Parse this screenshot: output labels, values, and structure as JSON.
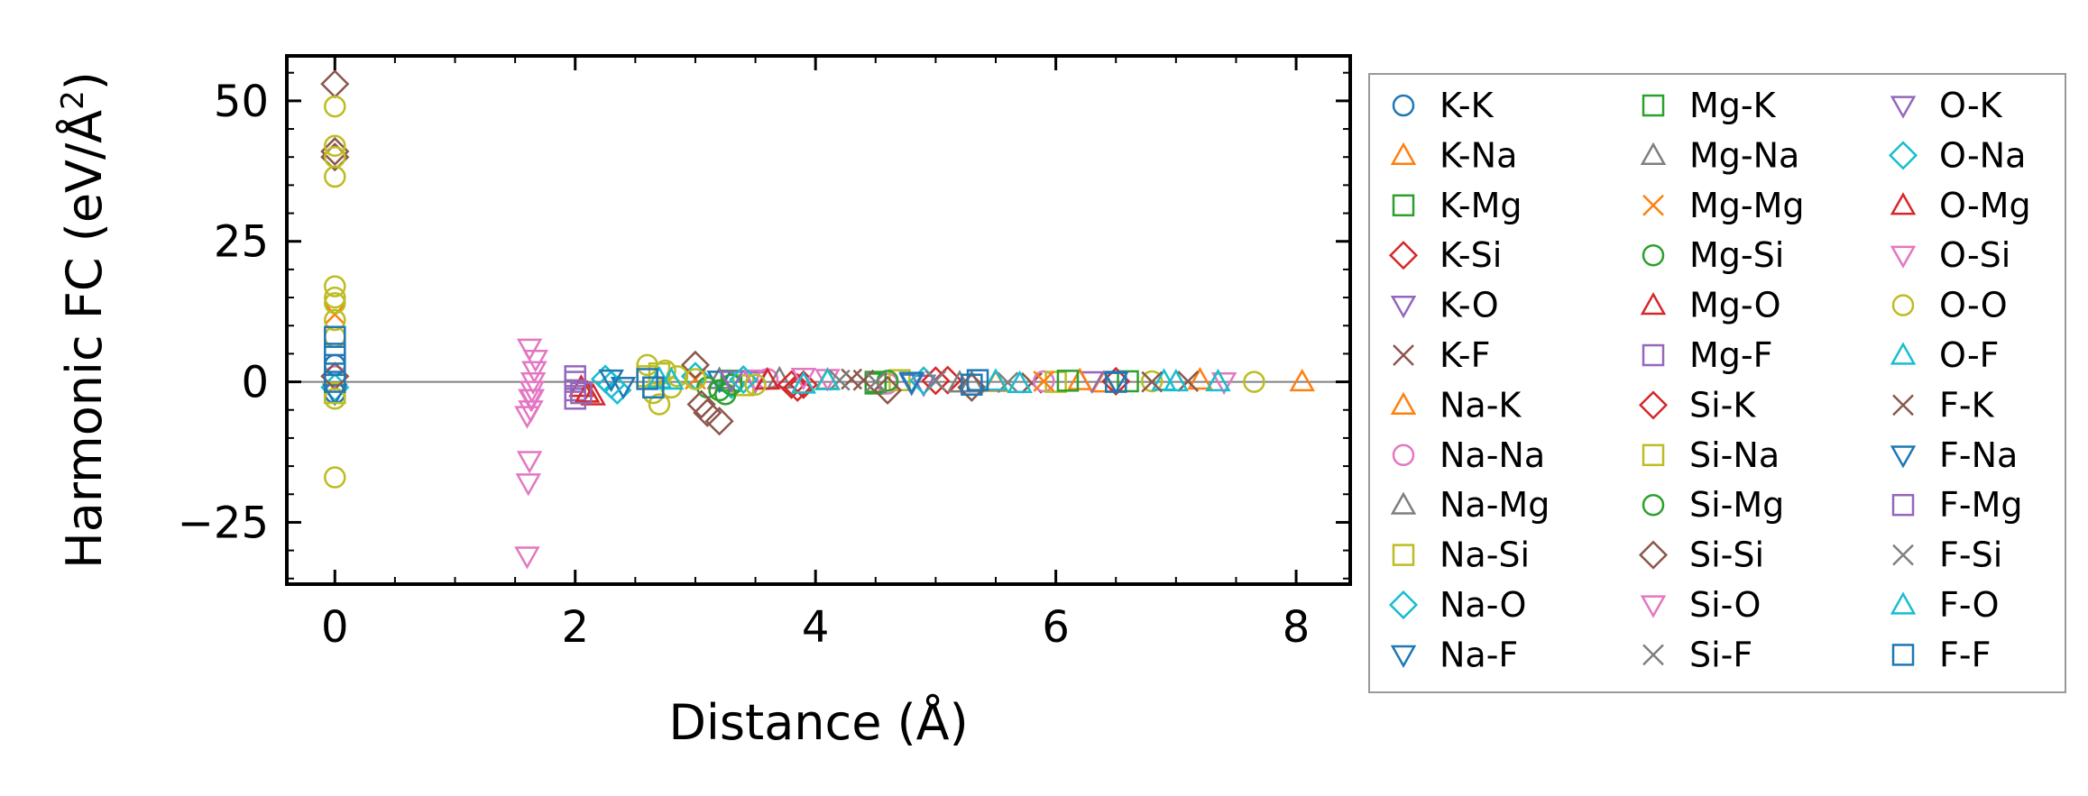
{
  "chart_data": {
    "type": "scatter",
    "title": "",
    "xlabel": "Distance (Å)",
    "ylabel_prefix": "Harmonic FC (eV/Å",
    "ylabel_sup": "2",
    "ylabel_suffix": ")",
    "xlim": [
      -0.4,
      8.45
    ],
    "ylim": [
      -36,
      58
    ],
    "xticks": [
      0,
      2,
      4,
      6,
      8
    ],
    "xtick_labels": [
      "0",
      "2",
      "4",
      "6",
      "8"
    ],
    "yticks": [
      -25,
      0,
      25,
      50
    ],
    "ytick_labels": [
      "−25",
      "0",
      "25",
      "50"
    ],
    "zero_line": 0,
    "legend_position": "outside-right",
    "series": [
      {
        "name": "K-K",
        "marker": "circle",
        "color": "#1f77b4",
        "x": [
          0,
          0
        ],
        "y": [
          -2,
          3
        ]
      },
      {
        "name": "K-Na",
        "marker": "triangle-up",
        "color": "#ff7f0e",
        "x": [
          8.05,
          7.2,
          6.4
        ],
        "y": [
          0,
          0.3,
          -0.2
        ]
      },
      {
        "name": "K-Mg",
        "marker": "square",
        "color": "#2ca02c",
        "x": [
          3.3,
          4.5,
          6.6
        ],
        "y": [
          0.2,
          -0.3,
          0.1
        ]
      },
      {
        "name": "K-Si",
        "marker": "diamond",
        "color": "#d62728",
        "x": [
          3.9,
          5.1,
          6.5
        ],
        "y": [
          -0.5,
          0.3,
          0.1
        ]
      },
      {
        "name": "K-O",
        "marker": "triangle-down",
        "color": "#9467bd",
        "x": [
          3.5,
          4.9,
          6.3
        ],
        "y": [
          0.2,
          -0.4,
          0.2
        ]
      },
      {
        "name": "K-F",
        "marker": "x",
        "color": "#8c564b",
        "x": [
          4.3,
          5.8,
          7.1
        ],
        "y": [
          0.5,
          -0.2,
          0.1
        ]
      },
      {
        "name": "Na-K",
        "marker": "triangle-up",
        "color": "#ff7f0e",
        "x": [
          4.1,
          5.5,
          6.2
        ],
        "y": [
          0.3,
          -0.1,
          0.2
        ]
      },
      {
        "name": "Na-Na",
        "marker": "circle",
        "color": "#e377c2",
        "x": [
          0,
          3.6,
          4.6,
          5.9
        ],
        "y": [
          1,
          0.5,
          -0.3,
          0.1
        ]
      },
      {
        "name": "Na-Mg",
        "marker": "triangle-up",
        "color": "#7f7f7f",
        "x": [
          3.2,
          5.3
        ],
        "y": [
          0.4,
          -0.2
        ]
      },
      {
        "name": "Na-Si",
        "marker": "square",
        "color": "#bcbd22",
        "x": [
          3.4,
          4.7,
          6.0
        ],
        "y": [
          -0.6,
          0.3,
          0.0
        ]
      },
      {
        "name": "Na-O",
        "marker": "diamond",
        "color": "#17becf",
        "x": [
          0,
          2.25,
          2.35,
          3.0,
          3.3
        ],
        "y": [
          -1,
          0.5,
          -1.5,
          1.0,
          -0.5
        ]
      },
      {
        "name": "Na-F",
        "marker": "triangle-down",
        "color": "#1f77b4",
        "x": [
          0,
          2.4,
          3.2,
          4.8,
          6.5
        ],
        "y": [
          -2,
          -0.8,
          0.3,
          -0.2,
          0.1
        ]
      },
      {
        "name": "Mg-K",
        "marker": "square",
        "color": "#2ca02c",
        "x": [
          4.5,
          6.1
        ],
        "y": [
          0.0,
          0.2
        ]
      },
      {
        "name": "Mg-Na",
        "marker": "triangle-up",
        "color": "#7f7f7f",
        "x": [
          3.7,
          5.2
        ],
        "y": [
          0.5,
          -0.2
        ]
      },
      {
        "name": "Mg-Mg",
        "marker": "x",
        "color": "#ff7f0e",
        "x": [
          0,
          3.0,
          5.9
        ],
        "y": [
          12,
          0.5,
          0.1
        ]
      },
      {
        "name": "Mg-Si",
        "marker": "circle",
        "color": "#2ca02c",
        "x": [
          3.2,
          3.25,
          4.6
        ],
        "y": [
          -1.5,
          -2.2,
          0.2
        ]
      },
      {
        "name": "Mg-O",
        "marker": "triangle-up",
        "color": "#d62728",
        "x": [
          2.05,
          2.1,
          2.15
        ],
        "y": [
          -1,
          -2,
          -2.5
        ]
      },
      {
        "name": "Mg-F",
        "marker": "square",
        "color": "#9467bd",
        "x": [
          2.0,
          2.0,
          2.0
        ],
        "y": [
          1,
          -1.5,
          -3
        ]
      },
      {
        "name": "Si-K",
        "marker": "diamond",
        "color": "#d62728",
        "x": [
          3.8,
          3.85,
          5.0
        ],
        "y": [
          -0.5,
          -1.0,
          0.2
        ]
      },
      {
        "name": "Si-Na",
        "marker": "square",
        "color": "#bcbd22",
        "x": [
          0,
          2.6,
          2.65,
          2.7
        ],
        "y": [
          -2,
          1,
          -1,
          1.5
        ]
      },
      {
        "name": "Si-Mg",
        "marker": "circle",
        "color": "#2ca02c",
        "x": [
          3.1,
          3.3
        ],
        "y": [
          -1,
          -0.5
        ]
      },
      {
        "name": "Si-Si",
        "marker": "diamond",
        "color": "#8c564b",
        "x": [
          0,
          0,
          0,
          0,
          3.0,
          3.05,
          3.1,
          3.2,
          4.6,
          5.3
        ],
        "y": [
          53,
          41,
          40,
          1,
          3,
          -4,
          -5.5,
          -7,
          -1.5,
          -1
        ]
      },
      {
        "name": "Si-O",
        "marker": "triangle-down",
        "color": "#e377c2",
        "x": [
          1.6,
          1.61,
          1.62,
          1.63,
          1.64,
          1.65,
          1.66,
          1.67,
          1.62,
          1.64,
          3.5,
          4.1
        ],
        "y": [
          -31,
          -18,
          -14,
          -5,
          -3,
          0,
          2,
          4,
          6,
          -1.5,
          0.5,
          0.6
        ]
      },
      {
        "name": "Si-F",
        "marker": "x",
        "color": "#7f7f7f",
        "x": [
          4.2,
          5.6
        ],
        "y": [
          0.3,
          -0.1
        ]
      },
      {
        "name": "O-K",
        "marker": "triangle-down",
        "color": "#9467bd",
        "x": [
          3.3,
          4.8
        ],
        "y": [
          0.3,
          0.0
        ]
      },
      {
        "name": "O-Na",
        "marker": "diamond",
        "color": "#17becf",
        "x": [
          2.3,
          3.4,
          4.9
        ],
        "y": [
          -0.5,
          0.4,
          0.2
        ]
      },
      {
        "name": "O-Mg",
        "marker": "triangle-up",
        "color": "#d62728",
        "x": [
          2.1,
          3.6
        ],
        "y": [
          -2,
          0.3
        ]
      },
      {
        "name": "O-Si",
        "marker": "triangle-down",
        "color": "#e377c2",
        "x": [
          1.6,
          1.63,
          3.9,
          7.4
        ],
        "y": [
          -6,
          -3,
          0.8,
          0
        ]
      },
      {
        "name": "O-O",
        "marker": "circle",
        "color": "#bcbd22",
        "x": [
          0,
          0,
          0,
          0,
          0,
          0,
          0,
          0,
          0,
          0,
          0,
          2.6,
          2.65,
          2.7,
          2.75,
          2.8,
          2.85,
          3.0,
          3.5,
          6.8,
          7.65
        ],
        "y": [
          49,
          42,
          40,
          36.5,
          17,
          15,
          14,
          11,
          8,
          -3,
          -17,
          3,
          -2,
          -4,
          2,
          -1,
          1,
          0.5,
          -0.5,
          0.1,
          0
        ]
      },
      {
        "name": "O-F",
        "marker": "triangle-up",
        "color": "#17becf",
        "x": [
          2.7,
          4.1,
          5.7,
          6.9,
          7.35
        ],
        "y": [
          0.5,
          0.2,
          -0.3,
          0.1,
          0
        ]
      },
      {
        "name": "F-K",
        "marker": "x",
        "color": "#8c564b",
        "x": [
          4.4,
          6.8
        ],
        "y": [
          0.3,
          0.0
        ]
      },
      {
        "name": "F-Na",
        "marker": "triangle-down",
        "color": "#1f77b4",
        "x": [
          2.3,
          4.8
        ],
        "y": [
          0.5,
          0.1
        ]
      },
      {
        "name": "F-Mg",
        "marker": "square",
        "color": "#9467bd",
        "x": [
          2.0,
          2.05
        ],
        "y": [
          0,
          -2
        ]
      },
      {
        "name": "F-Si",
        "marker": "x",
        "color": "#7f7f7f",
        "x": [
          4.5,
          5.0
        ],
        "y": [
          0.0,
          0.2
        ]
      },
      {
        "name": "F-O",
        "marker": "triangle-up",
        "color": "#17becf",
        "x": [
          2.8,
          3.9,
          5.5,
          7.0
        ],
        "y": [
          0.3,
          -0.4,
          0.1,
          0.0
        ]
      },
      {
        "name": "F-F",
        "marker": "square",
        "color": "#1f77b4",
        "x": [
          0,
          0,
          0,
          0,
          2.6,
          2.65,
          5.3,
          5.35,
          6.5
        ],
        "y": [
          8,
          5,
          3,
          0,
          0.5,
          -1,
          -0.5,
          0.3,
          0.0
        ]
      }
    ]
  }
}
